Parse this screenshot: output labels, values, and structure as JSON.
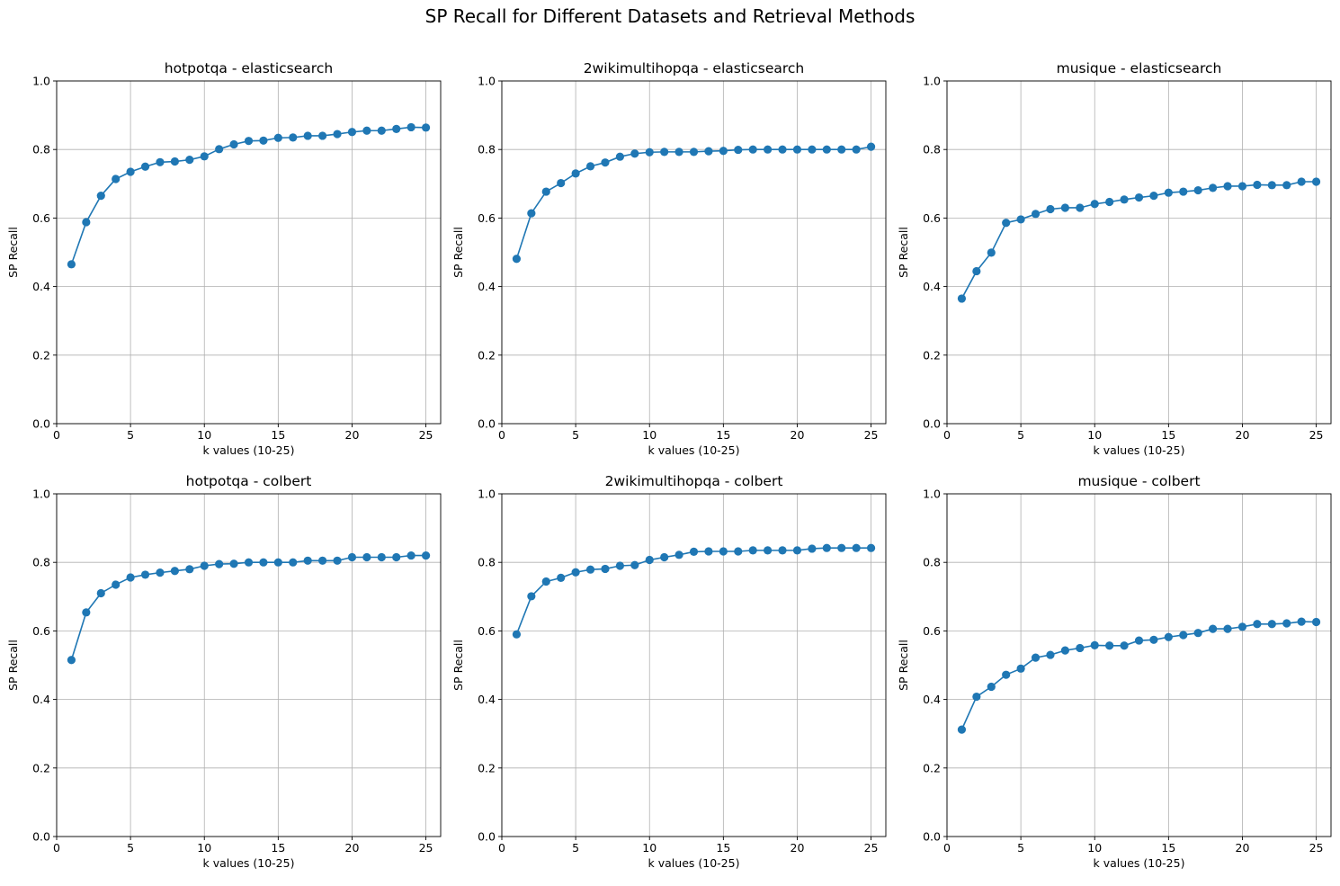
{
  "figure": {
    "suptitle": "SP Recall for Different Datasets and Retrieval Methods"
  },
  "chart_data": [
    {
      "type": "line",
      "title": "hotpotqa - elasticsearch",
      "xlabel": "k values (10-25)",
      "ylabel": "SP Recall",
      "xlim": [
        0,
        26
      ],
      "ylim": [
        0,
        1
      ],
      "xticks": [
        0,
        5,
        10,
        15,
        20,
        25
      ],
      "yticks": [
        0.0,
        0.2,
        0.4,
        0.6,
        0.8,
        1.0
      ],
      "grid": true,
      "color": "#1f77b4",
      "x": [
        1,
        2,
        3,
        4,
        5,
        6,
        7,
        8,
        9,
        10,
        11,
        12,
        13,
        14,
        15,
        16,
        17,
        18,
        19,
        20,
        21,
        22,
        23,
        24,
        25
      ],
      "y": [
        0.465,
        0.588,
        0.665,
        0.714,
        0.735,
        0.75,
        0.763,
        0.765,
        0.77,
        0.78,
        0.801,
        0.815,
        0.825,
        0.826,
        0.834,
        0.835,
        0.84,
        0.84,
        0.845,
        0.851,
        0.855,
        0.855,
        0.86,
        0.865,
        0.864
      ]
    },
    {
      "type": "line",
      "title": "2wikimultihopqa - elasticsearch",
      "xlabel": "k values (10-25)",
      "ylabel": "SP Recall",
      "xlim": [
        0,
        26
      ],
      "ylim": [
        0,
        1
      ],
      "xticks": [
        0,
        5,
        10,
        15,
        20,
        25
      ],
      "yticks": [
        0.0,
        0.2,
        0.4,
        0.6,
        0.8,
        1.0
      ],
      "grid": true,
      "color": "#1f77b4",
      "x": [
        1,
        2,
        3,
        4,
        5,
        6,
        7,
        8,
        9,
        10,
        11,
        12,
        13,
        14,
        15,
        16,
        17,
        18,
        19,
        20,
        21,
        22,
        23,
        24,
        25
      ],
      "y": [
        0.481,
        0.614,
        0.677,
        0.702,
        0.73,
        0.751,
        0.762,
        0.779,
        0.788,
        0.792,
        0.793,
        0.793,
        0.793,
        0.795,
        0.796,
        0.799,
        0.8,
        0.8,
        0.8,
        0.8,
        0.8,
        0.8,
        0.8,
        0.8,
        0.808
      ]
    },
    {
      "type": "line",
      "title": "musique - elasticsearch",
      "xlabel": "k values (10-25)",
      "ylabel": "SP Recall",
      "xlim": [
        0,
        26
      ],
      "ylim": [
        0,
        1
      ],
      "xticks": [
        0,
        5,
        10,
        15,
        20,
        25
      ],
      "yticks": [
        0.0,
        0.2,
        0.4,
        0.6,
        0.8,
        1.0
      ],
      "grid": true,
      "color": "#1f77b4",
      "x": [
        1,
        2,
        3,
        4,
        5,
        6,
        7,
        8,
        9,
        10,
        11,
        12,
        13,
        14,
        15,
        16,
        17,
        18,
        19,
        20,
        21,
        22,
        23,
        24,
        25
      ],
      "y": [
        0.365,
        0.445,
        0.499,
        0.586,
        0.596,
        0.612,
        0.626,
        0.63,
        0.63,
        0.641,
        0.647,
        0.654,
        0.66,
        0.665,
        0.674,
        0.677,
        0.681,
        0.688,
        0.693,
        0.693,
        0.697,
        0.696,
        0.696,
        0.706,
        0.706
      ]
    },
    {
      "type": "line",
      "title": "hotpotqa - colbert",
      "xlabel": "k values (10-25)",
      "ylabel": "SP Recall",
      "xlim": [
        0,
        26
      ],
      "ylim": [
        0,
        1
      ],
      "xticks": [
        0,
        5,
        10,
        15,
        20,
        25
      ],
      "yticks": [
        0.0,
        0.2,
        0.4,
        0.6,
        0.8,
        1.0
      ],
      "grid": true,
      "color": "#1f77b4",
      "x": [
        1,
        2,
        3,
        4,
        5,
        6,
        7,
        8,
        9,
        10,
        11,
        12,
        13,
        14,
        15,
        16,
        17,
        18,
        19,
        20,
        21,
        22,
        23,
        24,
        25
      ],
      "y": [
        0.515,
        0.654,
        0.71,
        0.735,
        0.756,
        0.764,
        0.77,
        0.775,
        0.78,
        0.79,
        0.795,
        0.796,
        0.8,
        0.8,
        0.8,
        0.8,
        0.805,
        0.805,
        0.805,
        0.815,
        0.815,
        0.815,
        0.815,
        0.82,
        0.82
      ]
    },
    {
      "type": "line",
      "title": "2wikimultihopqa - colbert",
      "xlabel": "k values (10-25)",
      "ylabel": "SP Recall",
      "xlim": [
        0,
        26
      ],
      "ylim": [
        0,
        1
      ],
      "xticks": [
        0,
        5,
        10,
        15,
        20,
        25
      ],
      "yticks": [
        0.0,
        0.2,
        0.4,
        0.6,
        0.8,
        1.0
      ],
      "grid": true,
      "color": "#1f77b4",
      "x": [
        1,
        2,
        3,
        4,
        5,
        6,
        7,
        8,
        9,
        10,
        11,
        12,
        13,
        14,
        15,
        16,
        17,
        18,
        19,
        20,
        21,
        22,
        23,
        24,
        25
      ],
      "y": [
        0.59,
        0.701,
        0.744,
        0.755,
        0.771,
        0.779,
        0.781,
        0.79,
        0.792,
        0.807,
        0.815,
        0.822,
        0.831,
        0.832,
        0.832,
        0.832,
        0.835,
        0.835,
        0.835,
        0.835,
        0.84,
        0.842,
        0.842,
        0.842,
        0.842
      ]
    },
    {
      "type": "line",
      "title": "musique - colbert",
      "xlabel": "k values (10-25)",
      "ylabel": "SP Recall",
      "xlim": [
        0,
        26
      ],
      "ylim": [
        0,
        1
      ],
      "xticks": [
        0,
        5,
        10,
        15,
        20,
        25
      ],
      "yticks": [
        0.0,
        0.2,
        0.4,
        0.6,
        0.8,
        1.0
      ],
      "grid": true,
      "color": "#1f77b4",
      "x": [
        1,
        2,
        3,
        4,
        5,
        6,
        7,
        8,
        9,
        10,
        11,
        12,
        13,
        14,
        15,
        16,
        17,
        18,
        19,
        20,
        21,
        22,
        23,
        24,
        25
      ],
      "y": [
        0.312,
        0.408,
        0.437,
        0.472,
        0.49,
        0.522,
        0.53,
        0.543,
        0.55,
        0.558,
        0.557,
        0.557,
        0.572,
        0.574,
        0.582,
        0.588,
        0.594,
        0.606,
        0.606,
        0.612,
        0.62,
        0.62,
        0.622,
        0.627,
        0.626
      ]
    }
  ]
}
